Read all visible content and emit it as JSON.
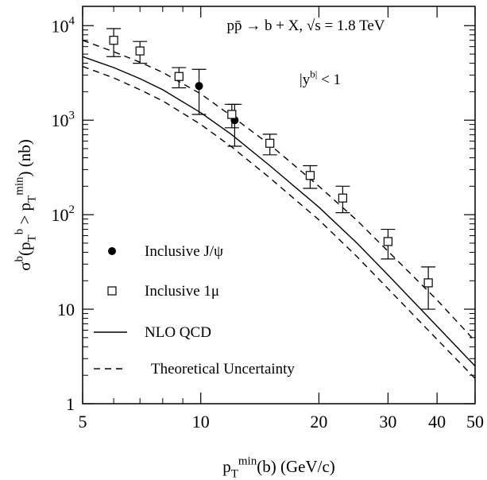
{
  "chart_data": {
    "type": "scatter",
    "title": "",
    "annotations": [
      {
        "id": "process",
        "text": "pp̄ → b + X, √s = 1.8 TeV"
      },
      {
        "id": "rapidity",
        "text": "|y^b| < 1"
      }
    ],
    "xlabel": "p_T^min(b) (GeV/c)",
    "ylabel": "σ^b(p_T^b > p_T^min) (nb)",
    "x_scale": "log",
    "y_scale": "log",
    "xlim": [
      5,
      50
    ],
    "ylim": [
      1,
      16000
    ],
    "x_ticks": [
      {
        "value": 5,
        "label": "5"
      },
      {
        "value": 10,
        "label": "10"
      },
      {
        "value": 20,
        "label": "20"
      },
      {
        "value": 30,
        "label": "30"
      },
      {
        "value": 40,
        "label": "40"
      },
      {
        "value": 50,
        "label": "50"
      }
    ],
    "y_ticks": [
      {
        "value": 1,
        "label": "1"
      },
      {
        "value": 10,
        "label": "10"
      },
      {
        "value": 100,
        "label": "10^2"
      },
      {
        "value": 1000,
        "label": "10^3"
      },
      {
        "value": 10000,
        "label": "10^4"
      }
    ],
    "series": [
      {
        "name": "Inclusive J/ψ",
        "marker": "filled-circle",
        "points": [
          {
            "x": 9.9,
            "y": 2300,
            "ylo": 1150,
            "yhi": 3450
          },
          {
            "x": 12.2,
            "y": 1000,
            "ylo": 530,
            "yhi": 1470
          }
        ]
      },
      {
        "name": "Inclusive 1μ",
        "marker": "open-square",
        "points": [
          {
            "x": 6.0,
            "y": 7000,
            "ylo": 4700,
            "yhi": 9300
          },
          {
            "x": 7.0,
            "y": 5400,
            "ylo": 4000,
            "yhi": 6800
          },
          {
            "x": 8.8,
            "y": 2900,
            "ylo": 2200,
            "yhi": 3600
          },
          {
            "x": 12.0,
            "y": 1150,
            "ylo": 830,
            "yhi": 1470
          },
          {
            "x": 15.0,
            "y": 570,
            "ylo": 430,
            "yhi": 710
          },
          {
            "x": 19.0,
            "y": 260,
            "ylo": 190,
            "yhi": 330
          },
          {
            "x": 23.0,
            "y": 150,
            "ylo": 105,
            "yhi": 200
          },
          {
            "x": 30.0,
            "y": 52,
            "ylo": 34,
            "yhi": 70
          },
          {
            "x": 38.0,
            "y": 19,
            "ylo": 10,
            "yhi": 28
          }
        ]
      },
      {
        "name": "NLO QCD",
        "line": "solid",
        "points": [
          {
            "x": 5,
            "y": 4700
          },
          {
            "x": 6,
            "y": 3600
          },
          {
            "x": 7,
            "y": 2750
          },
          {
            "x": 8,
            "y": 2100
          },
          {
            "x": 10,
            "y": 1200
          },
          {
            "x": 12,
            "y": 700
          },
          {
            "x": 15,
            "y": 330
          },
          {
            "x": 20,
            "y": 120
          },
          {
            "x": 25,
            "y": 50
          },
          {
            "x": 30,
            "y": 23
          },
          {
            "x": 40,
            "y": 6.6
          },
          {
            "x": 50,
            "y": 2.5
          }
        ]
      },
      {
        "name": "Theoretical Uncertainty",
        "line": "dashed",
        "points": [
          {
            "x": 5,
            "y": 7000
          },
          {
            "x": 6,
            "y": 5300
          },
          {
            "x": 7,
            "y": 4100
          },
          {
            "x": 8,
            "y": 3200
          },
          {
            "x": 10,
            "y": 1900
          },
          {
            "x": 12,
            "y": 1100
          },
          {
            "x": 15,
            "y": 550
          },
          {
            "x": 20,
            "y": 200
          },
          {
            "x": 25,
            "y": 87
          },
          {
            "x": 30,
            "y": 41
          },
          {
            "x": 40,
            "y": 12.5
          },
          {
            "x": 50,
            "y": 4.6
          }
        ]
      },
      {
        "name": "Theoretical Uncertainty (lower)",
        "line": "dashed",
        "points": [
          {
            "x": 5,
            "y": 3700
          },
          {
            "x": 6,
            "y": 2800
          },
          {
            "x": 7,
            "y": 2100
          },
          {
            "x": 8,
            "y": 1600
          },
          {
            "x": 10,
            "y": 900
          },
          {
            "x": 12,
            "y": 520
          },
          {
            "x": 15,
            "y": 245
          },
          {
            "x": 20,
            "y": 88
          },
          {
            "x": 25,
            "y": 36
          },
          {
            "x": 30,
            "y": 16.5
          },
          {
            "x": 40,
            "y": 4.8
          },
          {
            "x": 50,
            "y": 1.85
          }
        ]
      }
    ],
    "legend": {
      "placement": "lower-left",
      "entries": [
        {
          "label": "Inclusive J/ψ",
          "symbol": "filled-circle"
        },
        {
          "label": "Inclusive 1μ",
          "symbol": "open-square"
        },
        {
          "label": "NLO QCD",
          "symbol": "solid-line"
        },
        {
          "label": "Theoretical Uncertainty",
          "symbol": "dashed-line"
        }
      ]
    },
    "grid": false
  }
}
